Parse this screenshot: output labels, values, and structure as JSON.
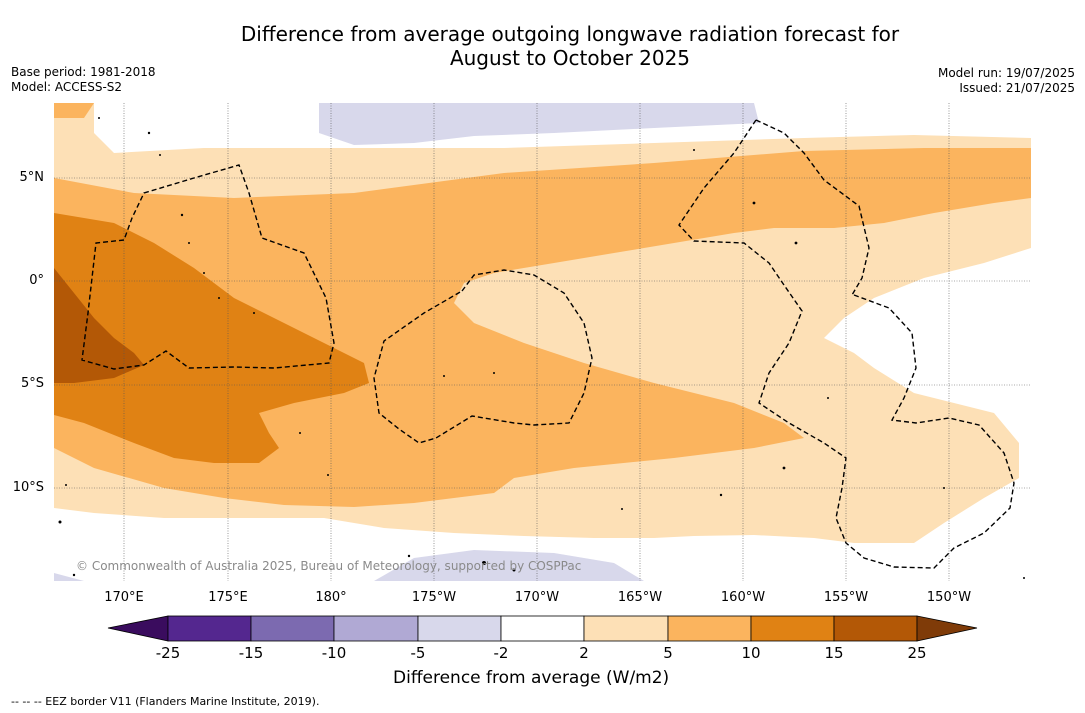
{
  "title_line1": "Difference from average outgoing longwave radiation forecast for",
  "title_line2": "August to October 2025",
  "meta_left": {
    "base_period": "Base period: 1981-2018",
    "model": "Model: ACCESS-S2"
  },
  "meta_right": {
    "model_run": "Model run: 19/07/2025",
    "issued": "Issued: 21/07/2025"
  },
  "lat_ticks": [
    "5°N",
    "0°",
    "5°S",
    "10°S"
  ],
  "lon_ticks": [
    "170°E",
    "175°E",
    "180°",
    "175°W",
    "170°W",
    "165°W",
    "160°W",
    "155°W",
    "150°W"
  ],
  "copyright": "© Commonwealth of Australia 2025, Bureau of Meteorology, supported by COSPPac",
  "colorbar": {
    "labels": [
      "-25",
      "-15",
      "-10",
      "-5",
      "-2",
      "2",
      "5",
      "10",
      "15",
      "25"
    ],
    "colors": [
      "#3a0c5e",
      "#54278f",
      "#7c6ab0",
      "#b0a9d4",
      "#d8d8eb",
      "#ffffff",
      "#fde0b6",
      "#fbb45e",
      "#e08214",
      "#b35806",
      "#7f3b08"
    ],
    "title": "Difference from average (W/m2)"
  },
  "footnote": "--  --  -- EEZ border V11 (Flanders Marine Institute, 2019)."
}
